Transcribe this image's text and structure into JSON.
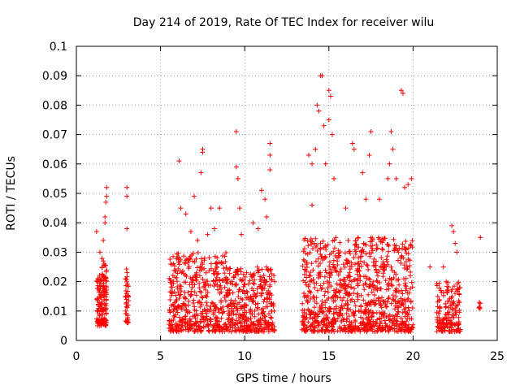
{
  "chart_data": {
    "type": "scatter",
    "title": "Day 214 of 2019, Rate Of TEC Index for receiver wilu",
    "xlabel": "GPS time / hours",
    "ylabel": "ROTI / TECUs",
    "xlim": [
      0,
      25
    ],
    "ylim": [
      0,
      0.1
    ],
    "x_ticks": [
      0,
      5,
      10,
      15,
      20,
      25
    ],
    "x_tick_labels": [
      "0",
      "5",
      "10",
      "15",
      "20",
      "25"
    ],
    "y_ticks": [
      0,
      0.01,
      0.02,
      0.03,
      0.04,
      0.05,
      0.06,
      0.07,
      0.08,
      0.09,
      0.1
    ],
    "y_tick_labels": [
      "0",
      "0.01",
      "0.02",
      "0.03",
      "0.04",
      "0.05",
      "0.06",
      "0.07",
      "0.08",
      "0.09",
      "0.1"
    ],
    "grid": true,
    "marker": "+",
    "color": "#ff0000",
    "series": [
      {
        "name": "ROTI",
        "clusters": [
          {
            "x_range": [
              1.2,
              1.8
            ],
            "y_range": [
              0.005,
              0.028
            ],
            "count": 150,
            "outliers": [
              [
                1.2,
                0.037
              ],
              [
                1.4,
                0.03
              ],
              [
                1.6,
                0.034
              ],
              [
                1.7,
                0.042
              ],
              [
                1.8,
                0.052
              ],
              [
                1.8,
                0.049
              ],
              [
                1.75,
                0.047
              ],
              [
                1.7,
                0.04
              ]
            ]
          },
          {
            "x_range": [
              2.9,
              3.1
            ],
            "y_range": [
              0.006,
              0.025
            ],
            "count": 40,
            "outliers": [
              [
                3.0,
                0.052
              ],
              [
                3.0,
                0.049
              ],
              [
                3.0,
                0.038
              ]
            ]
          },
          {
            "x_range": [
              5.5,
              9.0
            ],
            "y_range": [
              0.003,
              0.03
            ],
            "count": 460,
            "outliers": [
              [
                6.1,
                0.061
              ],
              [
                6.2,
                0.045
              ],
              [
                6.5,
                0.043
              ],
              [
                7.0,
                0.049
              ],
              [
                7.4,
                0.057
              ],
              [
                7.5,
                0.064
              ],
              [
                7.5,
                0.065
              ],
              [
                7.8,
                0.036
              ],
              [
                8.0,
                0.045
              ],
              [
                8.2,
                0.038
              ],
              [
                8.5,
                0.045
              ],
              [
                6.8,
                0.037
              ],
              [
                7.2,
                0.034
              ]
            ]
          },
          {
            "x_range": [
              9.0,
              11.8
            ],
            "y_range": [
              0.003,
              0.025
            ],
            "count": 360,
            "outliers": [
              [
                9.5,
                0.071
              ],
              [
                9.5,
                0.059
              ],
              [
                9.6,
                0.055
              ],
              [
                9.7,
                0.045
              ],
              [
                10.5,
                0.04
              ],
              [
                10.8,
                0.038
              ],
              [
                11.0,
                0.051
              ],
              [
                11.2,
                0.048
              ],
              [
                11.5,
                0.067
              ],
              [
                11.5,
                0.063
              ],
              [
                11.5,
                0.058
              ],
              [
                11.3,
                0.042
              ],
              [
                9.8,
                0.036
              ]
            ]
          },
          {
            "x_range": [
              13.4,
              20.0
            ],
            "y_range": [
              0.003,
              0.035
            ],
            "count": 950,
            "outliers": [
              [
                13.8,
                0.063
              ],
              [
                14.0,
                0.06
              ],
              [
                14.2,
                0.065
              ],
              [
                14.3,
                0.08
              ],
              [
                14.4,
                0.078
              ],
              [
                14.5,
                0.09
              ],
              [
                14.6,
                0.09
              ],
              [
                14.7,
                0.073
              ],
              [
                14.8,
                0.06
              ],
              [
                15.0,
                0.075
              ],
              [
                15.0,
                0.085
              ],
              [
                15.1,
                0.083
              ],
              [
                15.2,
                0.07
              ],
              [
                15.3,
                0.055
              ],
              [
                16.4,
                0.067
              ],
              [
                16.5,
                0.065
              ],
              [
                17.0,
                0.057
              ],
              [
                17.5,
                0.071
              ],
              [
                17.4,
                0.063
              ],
              [
                18.0,
                0.048
              ],
              [
                18.5,
                0.055
              ],
              [
                18.6,
                0.06
              ],
              [
                18.7,
                0.071
              ],
              [
                18.8,
                0.065
              ],
              [
                19.0,
                0.055
              ],
              [
                19.3,
                0.085
              ],
              [
                19.4,
                0.084
              ],
              [
                19.5,
                0.052
              ],
              [
                19.7,
                0.053
              ],
              [
                19.9,
                0.055
              ],
              [
                14.0,
                0.046
              ],
              [
                16.0,
                0.045
              ],
              [
                17.2,
                0.048
              ]
            ]
          },
          {
            "x_range": [
              21.4,
              22.8
            ],
            "y_range": [
              0.003,
              0.02
            ],
            "count": 160,
            "outliers": [
              [
                21.0,
                0.025
              ],
              [
                22.3,
                0.039
              ],
              [
                22.4,
                0.037
              ],
              [
                22.5,
                0.033
              ],
              [
                22.6,
                0.03
              ],
              [
                21.8,
                0.025
              ]
            ]
          },
          {
            "x_range": [
              23.9,
              24.0
            ],
            "y_range": [
              0.009,
              0.015
            ],
            "count": 6,
            "outliers": [
              [
                24.0,
                0.035
              ]
            ]
          }
        ]
      }
    ]
  }
}
